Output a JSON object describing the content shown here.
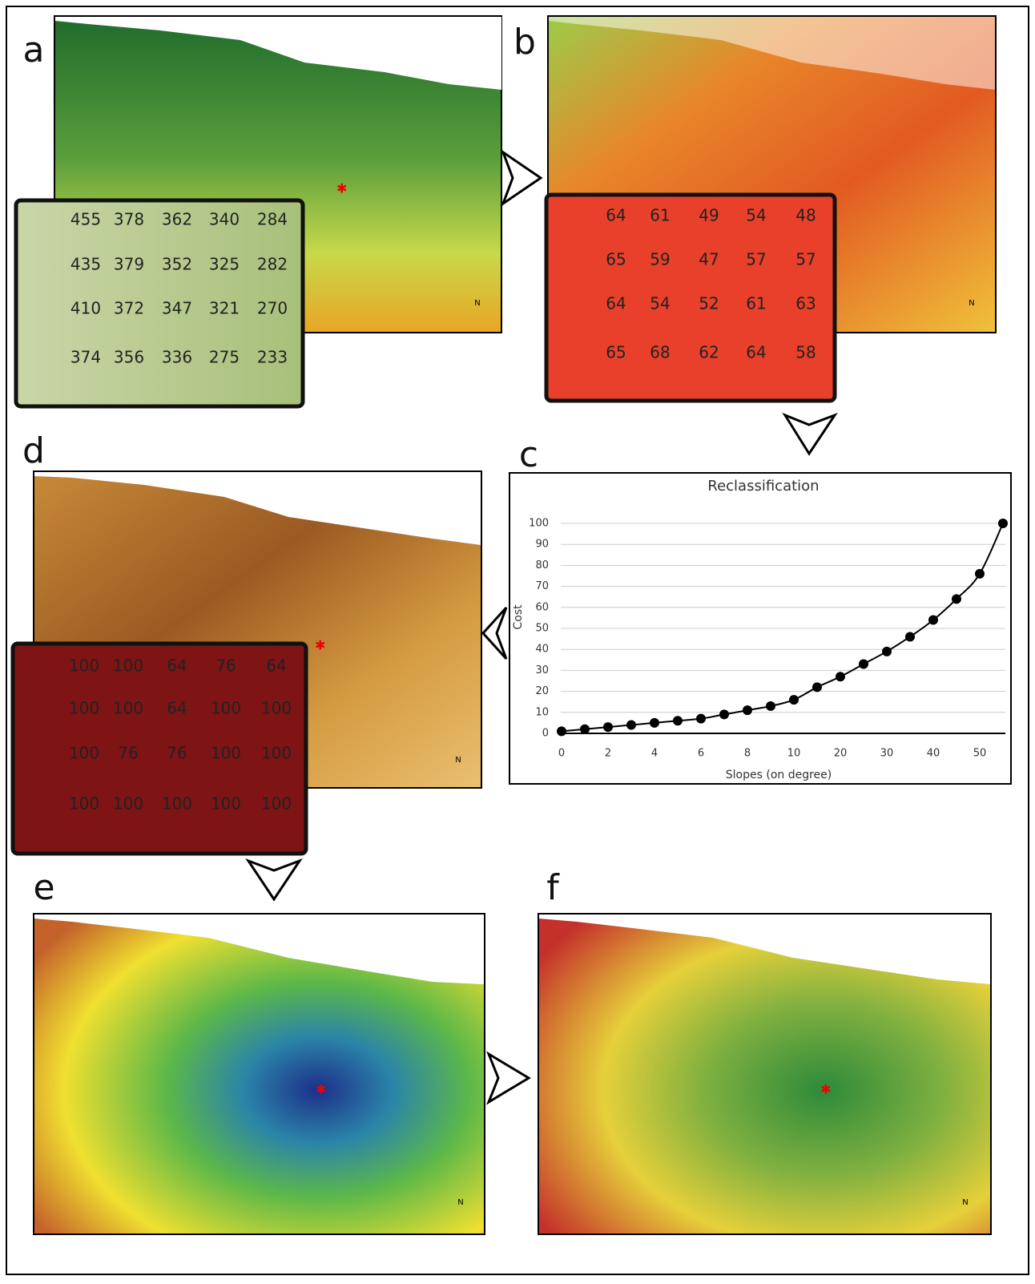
{
  "north_label": "N",
  "panels": [
    {
      "label": "a",
      "grid": [
        [
          455,
          378,
          362,
          340,
          284
        ],
        [
          435,
          379,
          352,
          325,
          282
        ],
        [
          410,
          372,
          347,
          321,
          270
        ],
        [
          374,
          356,
          336,
          275,
          233
        ]
      ]
    },
    {
      "label": "b",
      "grid": [
        [
          64,
          61,
          49,
          54,
          48
        ],
        [
          65,
          59,
          47,
          57,
          57
        ],
        [
          64,
          54,
          52,
          61,
          63
        ],
        [
          65,
          68,
          62,
          64,
          58
        ]
      ]
    },
    {
      "label": "d",
      "grid": [
        [
          100,
          100,
          64,
          76,
          64
        ],
        [
          100,
          100,
          64,
          100,
          100
        ],
        [
          100,
          76,
          76,
          100,
          100
        ],
        [
          100,
          100,
          100,
          100,
          100
        ]
      ]
    },
    {
      "label": "e"
    },
    {
      "label": "f"
    }
  ],
  "chart_data": {
    "type": "line",
    "panel_label": "c",
    "title": "Reclassification",
    "x_label": "Slopes (on degree)",
    "y_label": "Cost",
    "categories": [
      "0",
      null,
      "2",
      null,
      "4",
      null,
      "6",
      null,
      "8",
      null,
      "10",
      null,
      "20",
      null,
      "30",
      null,
      "40",
      null,
      "50",
      null
    ],
    "values": [
      1,
      2,
      3,
      4,
      5,
      6,
      7,
      9,
      11,
      13,
      16,
      22,
      27,
      33,
      39,
      46,
      54,
      64,
      76,
      100
    ],
    "color": "#000000",
    "ylim": [
      0,
      100
    ],
    "yticks": [
      0,
      10,
      20,
      30,
      40,
      50,
      60,
      70,
      80,
      90,
      100
    ],
    "grid": true
  }
}
